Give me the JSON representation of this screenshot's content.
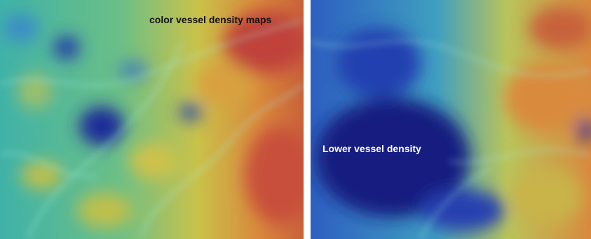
{
  "left_panel": {
    "caption": "color vessel density maps"
  },
  "right_panel": {
    "caption": "Lower vessel density"
  }
}
